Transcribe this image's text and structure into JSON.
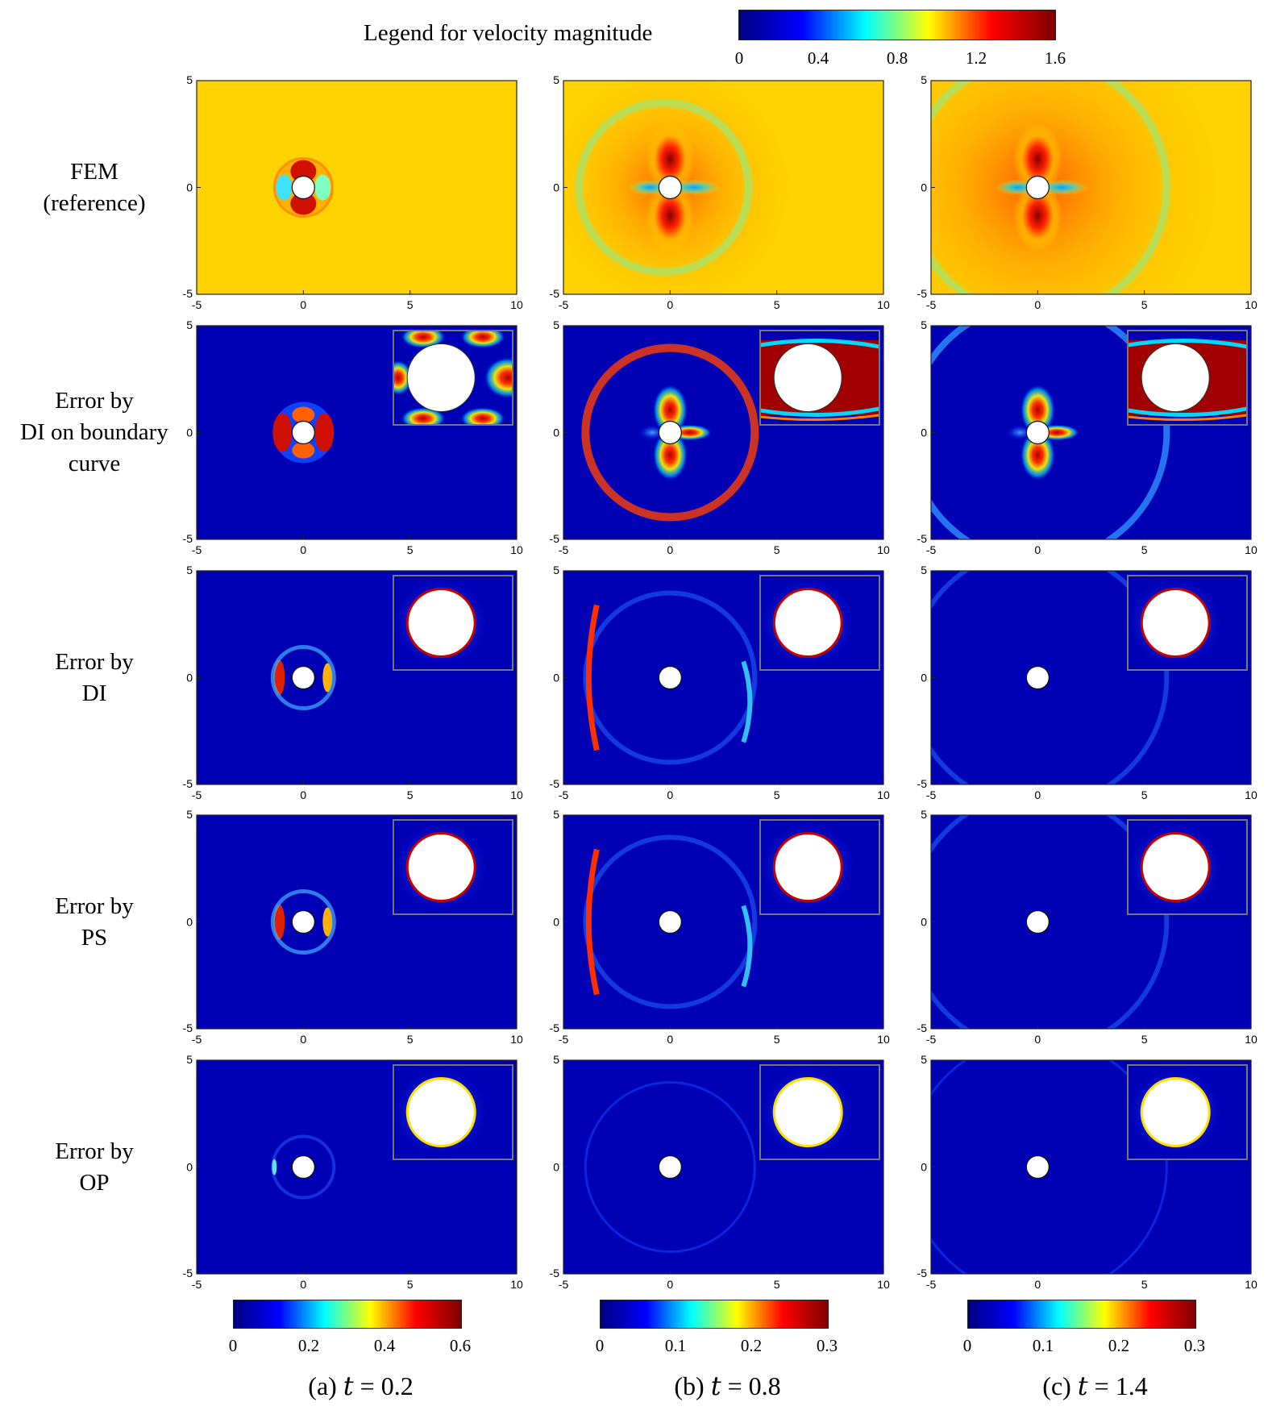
{
  "legend": {
    "title": "Legend for velocity magnitude",
    "ticks": [
      "0",
      "0.4",
      "0.8",
      "1.2",
      "1.6"
    ],
    "range": [
      0,
      1.6
    ]
  },
  "row_labels": [
    [
      "FEM",
      "(reference)"
    ],
    [
      "Error by",
      "DI on boundary",
      "curve"
    ],
    [
      "Error by",
      "DI"
    ],
    [
      "Error by",
      "PS"
    ],
    [
      "Error by",
      "OP"
    ]
  ],
  "columns": [
    {
      "caption_pre": "(a) ",
      "caption_var": "t",
      "caption_post": " = 0.2",
      "cbar_ticks": [
        "0",
        "0.2",
        "0.4",
        "0.6"
      ],
      "cbar_range": [
        0,
        0.6
      ],
      "time": 0.2
    },
    {
      "caption_pre": "(b) ",
      "caption_var": "t",
      "caption_post": " = 0.8",
      "cbar_ticks": [
        "0",
        "0.1",
        "0.2",
        "0.3"
      ],
      "cbar_range": [
        0,
        0.3
      ],
      "time": 0.8
    },
    {
      "caption_pre": "(c) ",
      "caption_var": "t",
      "caption_post": " = 1.4",
      "cbar_ticks": [
        "0",
        "0.1",
        "0.2",
        "0.3"
      ],
      "cbar_range": [
        0,
        0.3
      ],
      "time": 1.4
    }
  ],
  "axes": {
    "x_ticks": [
      "-5",
      "0",
      "5",
      "10"
    ],
    "y_ticks": [
      "5",
      "0",
      "-5"
    ],
    "xlim": [
      -5,
      10
    ],
    "ylim": [
      -5,
      5
    ]
  },
  "chart_data": {
    "type": "heatmap",
    "colormap": "jet",
    "grid": "3 columns x 5 rows",
    "xlim": [
      -5,
      10
    ],
    "ylim": [
      -5,
      5
    ],
    "cylinder": {
      "center": [
        0,
        0
      ],
      "radius": 0.5
    }
  }
}
